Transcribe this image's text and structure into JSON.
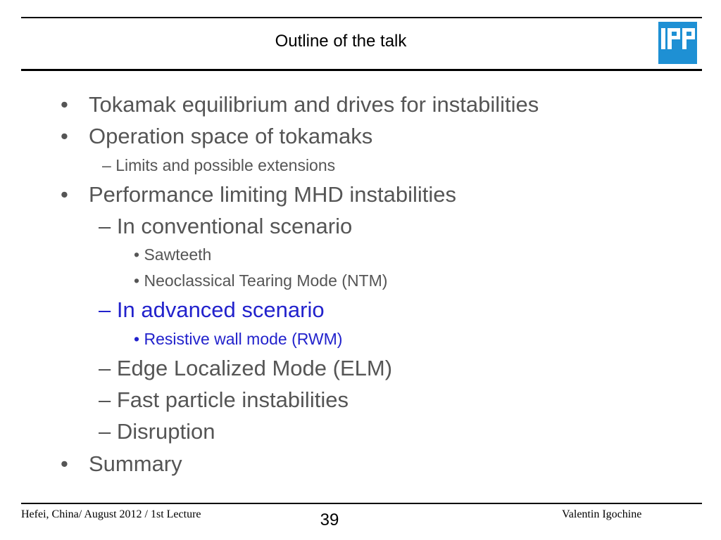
{
  "slide": {
    "title": "Outline of the talk",
    "logo_text": "IPP",
    "accent_color": "#2222cc",
    "text_color": "#555555",
    "logo_color": "#1e90d4",
    "outline": [
      {
        "marker": "•",
        "text": "Tokamak equilibrium and drives for instabilities",
        "level": 1
      },
      {
        "marker": "•",
        "text": "Operation space of tokamaks",
        "level": 1
      },
      {
        "marker": "–",
        "text": "Limits and possible extensions",
        "level": 2
      },
      {
        "marker": "•",
        "text": "Performance limiting MHD instabilities",
        "level": 1
      },
      {
        "marker": "–",
        "text": "In conventional scenario",
        "level": 2
      },
      {
        "marker": "•",
        "text": "Sawteeth",
        "level": 3
      },
      {
        "marker": "•",
        "text": "Neoclassical Tearing Mode (NTM)",
        "level": 3
      },
      {
        "marker": "–",
        "text": "In advanced scenario",
        "level": 2,
        "highlighted": true
      },
      {
        "marker": "•",
        "text": "Resistive wall mode (RWM)",
        "level": 3,
        "highlighted": true
      },
      {
        "marker": "–",
        "text": "Edge Localized Mode (ELM)",
        "level": 2
      },
      {
        "marker": "–",
        "text": "Fast particle instabilities",
        "level": 2
      },
      {
        "marker": "–",
        "text": "Disruption",
        "level": 2
      },
      {
        "marker": "•",
        "text": "Summary",
        "level": 1
      }
    ]
  },
  "footer": {
    "left": "Hefei, China/ August 2012 / 1st Lecture",
    "page_number": "39",
    "right": "Valentin Igochine"
  }
}
